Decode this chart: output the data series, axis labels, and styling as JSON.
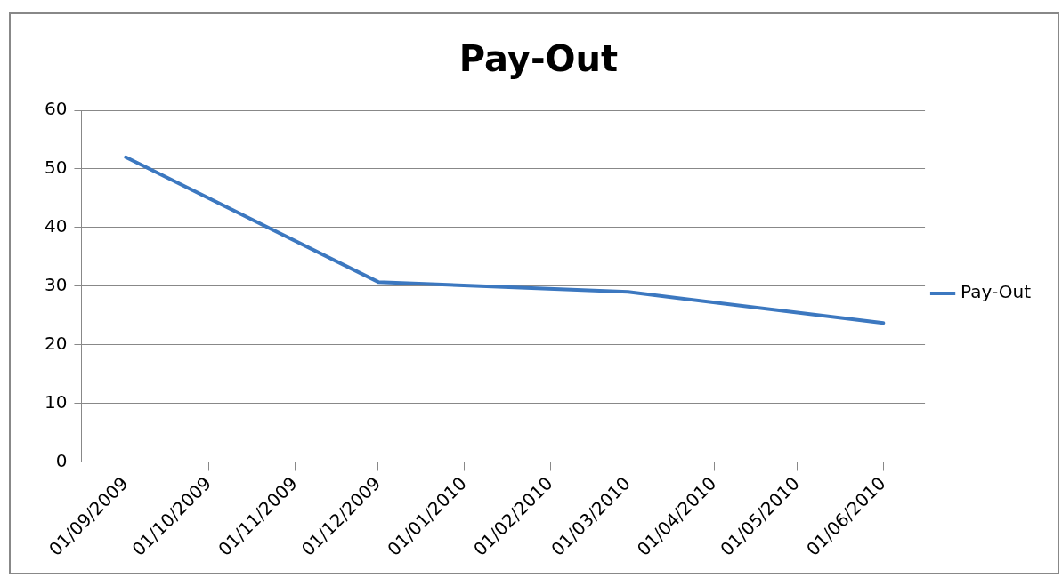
{
  "chart_data": {
    "type": "line",
    "title": "Pay-Out",
    "series": [
      {
        "name": "Pay-Out",
        "color": "#3c78c0",
        "x": [
          "2009-09-01",
          "2009-12-01",
          "2010-03-01",
          "2010-06-01"
        ],
        "values": [
          52,
          30.7,
          29,
          23.7
        ]
      }
    ],
    "xlim": [
      "2009-08-16",
      "2010-06-16"
    ],
    "xticks": [
      {
        "value": "2009-09-01",
        "label": "01/09/2009"
      },
      {
        "value": "2009-10-01",
        "label": "01/10/2009"
      },
      {
        "value": "2009-11-01",
        "label": "01/11/2009"
      },
      {
        "value": "2009-12-01",
        "label": "01/12/2009"
      },
      {
        "value": "2010-01-01",
        "label": "01/01/2010"
      },
      {
        "value": "2010-02-01",
        "label": "01/02/2010"
      },
      {
        "value": "2010-03-01",
        "label": "01/03/2010"
      },
      {
        "value": "2010-04-01",
        "label": "01/04/2010"
      },
      {
        "value": "2010-05-01",
        "label": "01/05/2010"
      },
      {
        "value": "2010-06-01",
        "label": "01/06/2010"
      }
    ],
    "ylim": [
      0,
      60
    ],
    "yticks": [
      0,
      10,
      20,
      30,
      40,
      50,
      60
    ],
    "grid": "y",
    "legend": "right",
    "marker": "none",
    "line_style": "solid"
  }
}
